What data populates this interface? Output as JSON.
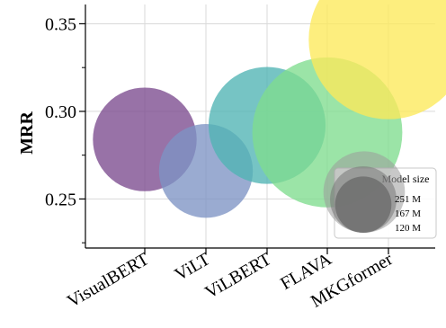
{
  "chart_data": {
    "type": "scatter",
    "title": "",
    "xlabel": "",
    "ylabel": "MRR",
    "ylim": [
      0.222,
      0.361
    ],
    "yticks": [
      0.25,
      0.3,
      0.35
    ],
    "ytick_labels": [
      "0.25",
      "0.30",
      "0.35"
    ],
    "yminor_ticks": [
      0.225,
      0.275,
      0.325
    ],
    "categories": [
      "VisualBERT",
      "ViLT",
      "ViLBERT",
      "FLAVA",
      "MKGformer"
    ],
    "values": [
      0.284,
      0.266,
      0.292,
      0.288,
      0.341
    ],
    "sizes": [
      "~ 110 M",
      "~ 90 M",
      "~ 140 M",
      "~ 230 M",
      "~ 260 M"
    ],
    "size_values": [
      110,
      90,
      140,
      230,
      260
    ],
    "colors": [
      "#7b4a8e",
      "#7d94c4",
      "#4fb3b3",
      "#7fdc8e",
      "#fde95a"
    ],
    "grid": true,
    "legend": {
      "title": "Model size",
      "placement": "lower-right",
      "entries": [
        {
          "label": "251 M",
          "size": 251
        },
        {
          "label": "167 M",
          "size": 167
        },
        {
          "label": "120 M",
          "size": 120
        }
      ]
    }
  }
}
